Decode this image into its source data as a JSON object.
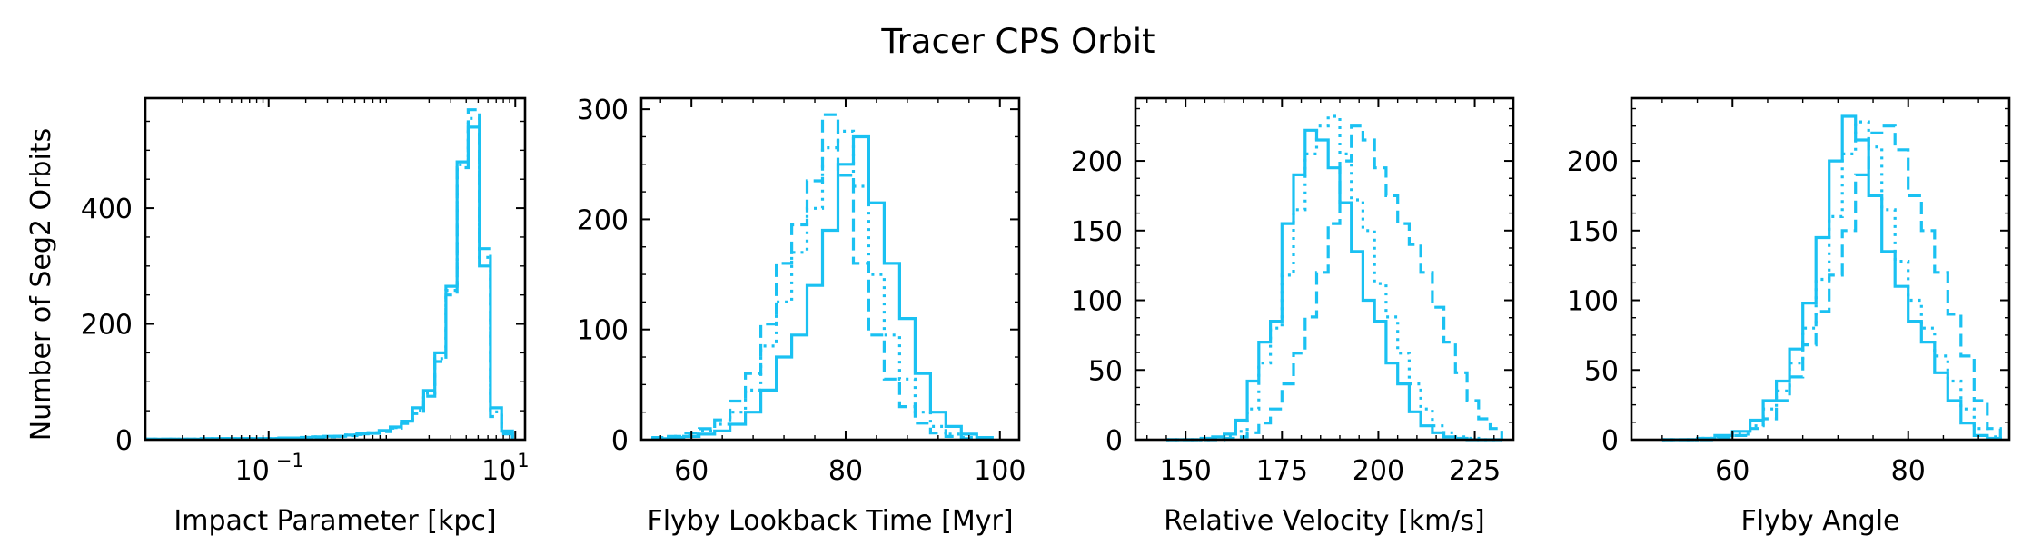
{
  "figure": {
    "title": "Tracer CPS Orbit",
    "ylabel": "Number of Seg2 Orbits",
    "line_color": "#1AC1F2"
  },
  "chart_data": [
    {
      "type": "histogram-step",
      "xlabel": "Impact Parameter [kpc]",
      "xscale": "log",
      "xlim": [
        0.01,
        12
      ],
      "ylim": [
        0,
        590
      ],
      "yticks": [
        0,
        200,
        400
      ],
      "ytick_labels": [
        "0",
        "200",
        "400"
      ],
      "xticks": [
        0.1,
        10
      ],
      "xtick_labels": [
        {
          "base": "10",
          "exp": "−1"
        },
        {
          "base": "10",
          "exp": "1"
        }
      ],
      "edges": [
        0.01,
        0.0123,
        0.0152,
        0.0187,
        0.023,
        0.0283,
        0.0349,
        0.0429,
        0.0528,
        0.065,
        0.08,
        0.0985,
        0.121,
        0.149,
        0.184,
        0.226,
        0.278,
        0.343,
        0.422,
        0.52,
        0.64,
        0.787,
        0.969,
        1.193,
        1.469,
        1.808,
        2.226,
        2.74,
        3.373,
        4.152,
        5.111,
        6.292,
        7.745,
        9.5
      ],
      "series": [
        {
          "name": "solid",
          "dash": "",
          "values": [
            1,
            1,
            1,
            1,
            1,
            2,
            2,
            2,
            2,
            2,
            2,
            2,
            3,
            3,
            4,
            5,
            6,
            6,
            8,
            10,
            12,
            16,
            22,
            32,
            55,
            85,
            150,
            265,
            480,
            540,
            300,
            55,
            15
          ]
        },
        {
          "name": "dashed",
          "dash": "14,7",
          "values": [
            1,
            1,
            1,
            1,
            1,
            1,
            2,
            2,
            2,
            2,
            2,
            2,
            3,
            3,
            3,
            4,
            5,
            6,
            7,
            9,
            11,
            14,
            20,
            28,
            45,
            75,
            135,
            250,
            470,
            570,
            330,
            40,
            10
          ]
        },
        {
          "name": "dotted",
          "dash": "3,6",
          "values": [
            1,
            1,
            1,
            1,
            1,
            1,
            2,
            2,
            2,
            2,
            2,
            2,
            3,
            3,
            4,
            5,
            5,
            6,
            8,
            10,
            12,
            15,
            21,
            30,
            50,
            80,
            140,
            258,
            475,
            555,
            315,
            48,
            12
          ]
        }
      ]
    },
    {
      "type": "histogram-step",
      "xlabel": "Flyby Lookback Time [Myr]",
      "xscale": "linear",
      "xlim": [
        53.5,
        102.5
      ],
      "ylim": [
        0,
        310
      ],
      "yticks": [
        0,
        100,
        200,
        300
      ],
      "ytick_labels": [
        "0",
        "100",
        "200",
        "300"
      ],
      "xticks": [
        60,
        80,
        100
      ],
      "xtick_labels": [
        "60",
        "80",
        "100"
      ],
      "edges": [
        55,
        57,
        59,
        61,
        63,
        65,
        67,
        69,
        71,
        73,
        75,
        77,
        79,
        81,
        83,
        85,
        87,
        89,
        91,
        93,
        95,
        97,
        99
      ],
      "series": [
        {
          "name": "solid",
          "dash": "",
          "values": [
            1,
            2,
            3,
            5,
            8,
            14,
            25,
            45,
            75,
            95,
            140,
            190,
            250,
            275,
            215,
            160,
            110,
            60,
            25,
            12,
            5,
            2
          ]
        },
        {
          "name": "dashed",
          "dash": "14,7",
          "values": [
            2,
            3,
            6,
            10,
            18,
            35,
            60,
            105,
            160,
            195,
            235,
            295,
            240,
            160,
            95,
            55,
            30,
            15,
            6,
            3,
            1,
            1
          ]
        },
        {
          "name": "dotted",
          "dash": "3,6",
          "values": [
            1,
            3,
            5,
            8,
            14,
            25,
            45,
            85,
            125,
            170,
            210,
            265,
            280,
            230,
            150,
            95,
            55,
            25,
            12,
            5,
            2,
            1
          ]
        }
      ]
    },
    {
      "type": "histogram-step",
      "xlabel": "Relative Velocity [km/s]",
      "xscale": "linear",
      "xlim": [
        137,
        235
      ],
      "ylim": [
        0,
        245
      ],
      "yticks": [
        0,
        50,
        100,
        150,
        200
      ],
      "ytick_labels": [
        "0",
        "50",
        "100",
        "150",
        "200"
      ],
      "xticks": [
        150,
        175,
        200,
        225
      ],
      "xtick_labels": [
        "150",
        "175",
        "200",
        "225"
      ],
      "edges": [
        145,
        148,
        151,
        154,
        157,
        160,
        163,
        166,
        169,
        172,
        175,
        178,
        181,
        184,
        187,
        190,
        193,
        196,
        199,
        202,
        205,
        208,
        211,
        214,
        217,
        220,
        223,
        226,
        229,
        232
      ],
      "series": [
        {
          "name": "solid",
          "dash": "",
          "values": [
            0,
            0,
            0,
            1,
            2,
            4,
            14,
            42,
            70,
            85,
            155,
            190,
            222,
            215,
            195,
            170,
            135,
            100,
            85,
            55,
            40,
            20,
            10,
            5,
            2,
            1,
            0,
            0,
            0
          ]
        },
        {
          "name": "dashed",
          "dash": "14,7",
          "values": [
            0,
            0,
            0,
            0,
            0,
            1,
            2,
            5,
            12,
            22,
            40,
            62,
            88,
            120,
            155,
            200,
            225,
            215,
            195,
            175,
            155,
            140,
            120,
            95,
            70,
            48,
            28,
            15,
            8
          ]
        },
        {
          "name": "dotted",
          "dash": "3,6",
          "values": [
            0,
            0,
            0,
            0,
            1,
            2,
            6,
            22,
            55,
            80,
            118,
            165,
            205,
            225,
            232,
            205,
            172,
            150,
            112,
            88,
            62,
            40,
            22,
            10,
            5,
            2,
            1,
            0,
            0
          ]
        }
      ]
    },
    {
      "type": "histogram-step",
      "xlabel": "Flyby Angle",
      "xscale": "linear",
      "xlim": [
        48.5,
        91.5
      ],
      "ylim": [
        0,
        245
      ],
      "yticks": [
        0,
        50,
        100,
        150,
        200
      ],
      "ytick_labels": [
        "0",
        "50",
        "100",
        "150",
        "200"
      ],
      "xticks": [
        60,
        80
      ],
      "xtick_labels": [
        "60",
        "80"
      ],
      "edges": [
        52,
        54,
        56,
        58,
        60,
        62,
        63.5,
        65,
        66.5,
        68,
        69.5,
        71,
        72.5,
        74,
        75.5,
        77,
        78.5,
        80,
        81.5,
        83,
        84.5,
        86,
        87.5,
        89,
        90.5
      ],
      "series": [
        {
          "name": "solid",
          "dash": "",
          "values": [
            0,
            0,
            1,
            3,
            6,
            14,
            28,
            42,
            65,
            98,
            145,
            200,
            232,
            215,
            175,
            135,
            110,
            85,
            70,
            48,
            28,
            12,
            3,
            1
          ]
        },
        {
          "name": "dashed",
          "dash": "14,7",
          "values": [
            0,
            0,
            0,
            1,
            3,
            8,
            15,
            28,
            45,
            68,
            92,
            118,
            150,
            190,
            220,
            225,
            208,
            175,
            150,
            120,
            90,
            60,
            28,
            8
          ]
        },
        {
          "name": "dotted",
          "dash": "3,6",
          "values": [
            0,
            0,
            1,
            2,
            4,
            10,
            22,
            35,
            55,
            80,
            115,
            160,
            205,
            228,
            210,
            165,
            128,
            100,
            80,
            60,
            42,
            22,
            8,
            2
          ]
        }
      ]
    }
  ]
}
